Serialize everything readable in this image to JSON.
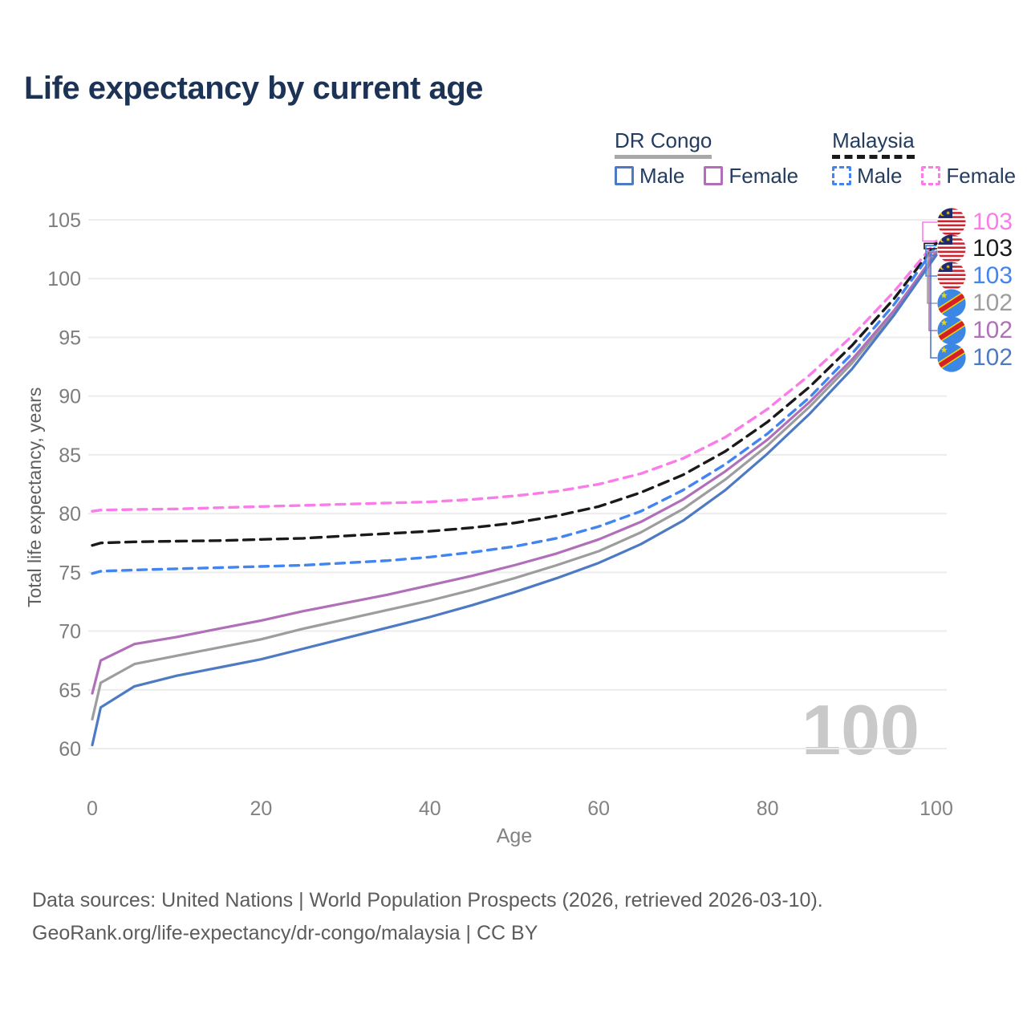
{
  "title": "Life expectancy by current age",
  "legend": {
    "groups": [
      {
        "title": "DR Congo",
        "style": "solid",
        "underline_color": "#a8a8a8",
        "items": [
          {
            "label": "Male",
            "color": "#4d7ac2",
            "dash": false
          },
          {
            "label": "Female",
            "color": "#b06fb8",
            "dash": false
          }
        ]
      },
      {
        "title": "Malaysia",
        "style": "dashed",
        "underline_color": "#1a1a1a",
        "items": [
          {
            "label": "Male",
            "color": "#4285f0",
            "dash": true
          },
          {
            "label": "Female",
            "color": "#fb7ce8",
            "dash": true
          }
        ]
      }
    ]
  },
  "chart_data": {
    "type": "line",
    "title": "Life expectancy by current age",
    "xlabel": "Age",
    "ylabel": "Total life expectancy, years",
    "xlim": [
      0,
      100
    ],
    "ylim": [
      60,
      105
    ],
    "x_ticks": [
      0,
      20,
      40,
      60,
      80,
      100
    ],
    "y_ticks": [
      60,
      65,
      70,
      75,
      80,
      85,
      90,
      95,
      100,
      105
    ],
    "grid": "horizontal",
    "legend_position": "top-right",
    "watermark": "100",
    "x": [
      0,
      1,
      5,
      10,
      15,
      20,
      25,
      30,
      35,
      40,
      45,
      50,
      55,
      60,
      65,
      70,
      75,
      80,
      85,
      90,
      95,
      100
    ],
    "series": [
      {
        "id": "malaysia-female",
        "name": "Malaysia Female",
        "country": "Malaysia",
        "sex": "Female",
        "color": "#fb7ce8",
        "dashed": true,
        "values": [
          80.2,
          80.3,
          80.35,
          80.4,
          80.5,
          80.6,
          80.7,
          80.8,
          80.9,
          81.0,
          81.2,
          81.5,
          81.9,
          82.5,
          83.4,
          84.7,
          86.5,
          88.9,
          91.8,
          95.1,
          98.9,
          103.2
        ]
      },
      {
        "id": "malaysia-all",
        "name": "Malaysia (both sexes)",
        "country": "Malaysia",
        "sex": "Both",
        "color": "#1a1a1a",
        "dashed": true,
        "values": [
          77.3,
          77.5,
          77.6,
          77.65,
          77.7,
          77.8,
          77.9,
          78.1,
          78.3,
          78.5,
          78.8,
          79.2,
          79.8,
          80.6,
          81.8,
          83.3,
          85.3,
          87.8,
          90.8,
          94.3,
          98.3,
          103.0
        ]
      },
      {
        "id": "malaysia-male",
        "name": "Malaysia Male",
        "country": "Malaysia",
        "sex": "Male",
        "color": "#4285f0",
        "dashed": true,
        "values": [
          74.9,
          75.1,
          75.2,
          75.3,
          75.4,
          75.5,
          75.6,
          75.8,
          76.0,
          76.3,
          76.7,
          77.2,
          77.9,
          78.9,
          80.2,
          82.0,
          84.2,
          86.8,
          89.9,
          93.6,
          97.8,
          102.8
        ]
      },
      {
        "id": "drc-all",
        "name": "DR Congo (both sexes)",
        "country": "DR Congo",
        "sex": "Both",
        "color": "#9d9d9d",
        "dashed": false,
        "values": [
          62.5,
          65.6,
          67.2,
          67.9,
          68.6,
          69.3,
          70.2,
          71.0,
          71.8,
          72.6,
          73.5,
          74.5,
          75.6,
          76.8,
          78.4,
          80.4,
          82.9,
          85.8,
          89.1,
          92.8,
          97.1,
          102.3
        ]
      },
      {
        "id": "drc-female",
        "name": "DR Congo Female",
        "country": "DR Congo",
        "sex": "Female",
        "color": "#b06fb8",
        "dashed": false,
        "values": [
          64.7,
          67.5,
          68.9,
          69.5,
          70.2,
          70.9,
          71.7,
          72.4,
          73.1,
          73.9,
          74.7,
          75.6,
          76.6,
          77.8,
          79.3,
          81.2,
          83.6,
          86.3,
          89.5,
          93.1,
          97.3,
          102.2
        ]
      },
      {
        "id": "drc-male",
        "name": "DR Congo Male",
        "country": "DR Congo",
        "sex": "Male",
        "color": "#4d7ac2",
        "dashed": false,
        "values": [
          60.3,
          63.5,
          65.3,
          66.2,
          66.9,
          67.6,
          68.5,
          69.4,
          70.3,
          71.2,
          72.2,
          73.3,
          74.5,
          75.8,
          77.4,
          79.4,
          82.0,
          85.1,
          88.5,
          92.3,
          96.9,
          102.0
        ]
      }
    ]
  },
  "end_labels": [
    {
      "series": "malaysia-female",
      "flag": "malaysia",
      "value": "103",
      "color": "#fb7ce8"
    },
    {
      "series": "malaysia-all",
      "flag": "malaysia",
      "value": "103",
      "color": "#1a1a1a"
    },
    {
      "series": "malaysia-male",
      "flag": "malaysia",
      "value": "103",
      "color": "#4285f0"
    },
    {
      "series": "drc-all",
      "flag": "dr-congo",
      "value": "102",
      "color": "#9d9d9d"
    },
    {
      "series": "drc-female",
      "flag": "dr-congo",
      "value": "102",
      "color": "#b06fb8"
    },
    {
      "series": "drc-male",
      "flag": "dr-congo",
      "value": "102",
      "color": "#4d7ac2"
    }
  ],
  "footer": {
    "line1": "Data sources: United Nations | World Population Prospects (2026, retrieved 2026-03-10).",
    "line2": "GeoRank.org/life-expectancy/dr-congo/malaysia | CC BY"
  }
}
